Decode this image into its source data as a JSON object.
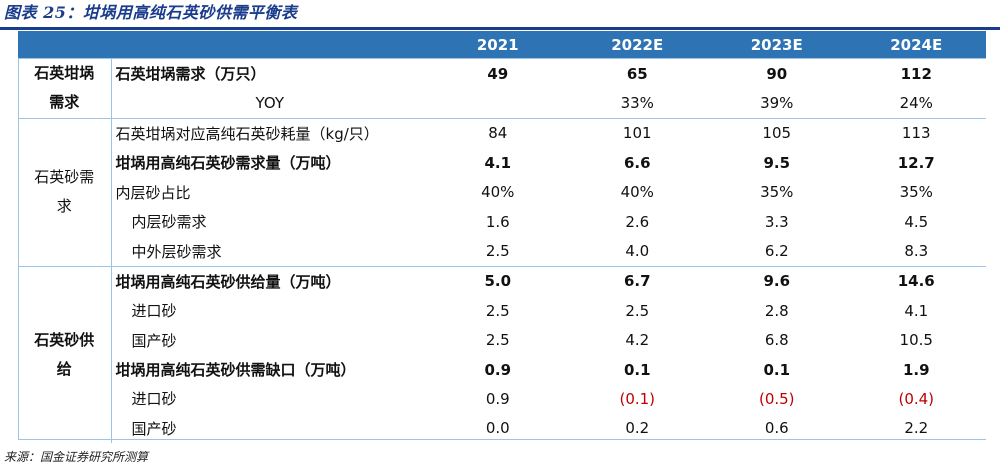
{
  "figure_title": "图表 25：坩埚用高纯石英砂供需平衡表",
  "columns": [
    "2021",
    "2022E",
    "2023E",
    "2024E"
  ],
  "groups": [
    {
      "name": "石英坩埚需求",
      "rows": [
        {
          "label": "石英坩埚需求（万只）",
          "bold": true,
          "indent": false,
          "center": false,
          "values": [
            "49",
            "65",
            "90",
            "112"
          ]
        },
        {
          "label": "YOY",
          "bold": false,
          "indent": false,
          "center": true,
          "values": [
            "",
            "33%",
            "39%",
            "24%"
          ]
        }
      ]
    },
    {
      "name": "石英砂需求",
      "rows": [
        {
          "label": "石英坩埚对应高纯石英砂耗量（kg/只）",
          "bold": false,
          "indent": false,
          "center": false,
          "values": [
            "84",
            "101",
            "105",
            "113"
          ]
        },
        {
          "label": "坩埚用高纯石英砂需求量（万吨）",
          "bold": true,
          "indent": false,
          "center": false,
          "values": [
            "4.1",
            "6.6",
            "9.5",
            "12.7"
          ]
        },
        {
          "label": "内层砂占比",
          "bold": false,
          "indent": false,
          "center": false,
          "values": [
            "40%",
            "40%",
            "35%",
            "35%"
          ]
        },
        {
          "label": "内层砂需求",
          "bold": false,
          "indent": true,
          "center": false,
          "values": [
            "1.6",
            "2.6",
            "3.3",
            "4.5"
          ]
        },
        {
          "label": "中外层砂需求",
          "bold": false,
          "indent": true,
          "center": false,
          "values": [
            "2.5",
            "4.0",
            "6.2",
            "8.3"
          ]
        }
      ]
    },
    {
      "name": "石英砂供给",
      "rows": [
        {
          "label": "坩埚用高纯石英砂供给量（万吨）",
          "bold": true,
          "indent": false,
          "center": false,
          "values": [
            "5.0",
            "6.7",
            "9.6",
            "14.6"
          ]
        },
        {
          "label": "进口砂",
          "bold": false,
          "indent": true,
          "center": false,
          "values": [
            "2.5",
            "2.5",
            "2.8",
            "4.1"
          ]
        },
        {
          "label": "国产砂",
          "bold": false,
          "indent": true,
          "center": false,
          "values": [
            "2.5",
            "4.2",
            "6.8",
            "10.5"
          ]
        },
        {
          "label": "坩埚用高纯石英砂供需缺口（万吨）",
          "bold": true,
          "indent": false,
          "center": false,
          "values": [
            "0.9",
            "0.1",
            "0.1",
            "1.9"
          ]
        },
        {
          "label": "进口砂",
          "bold": false,
          "indent": true,
          "center": false,
          "values": [
            "0.9",
            "(0.1)",
            "(0.5)",
            "(0.4)"
          ]
        },
        {
          "label": "国产砂",
          "bold": false,
          "indent": true,
          "center": false,
          "values": [
            "0.0",
            "0.2",
            "0.6",
            "2.2"
          ]
        }
      ]
    }
  ],
  "source_note": "来源：国金证券研究所测算",
  "colors": {
    "header_bg": "#2e74b5",
    "title": "#1a3c8c",
    "rule": "#9dc3e6",
    "negative": "#c00000"
  }
}
